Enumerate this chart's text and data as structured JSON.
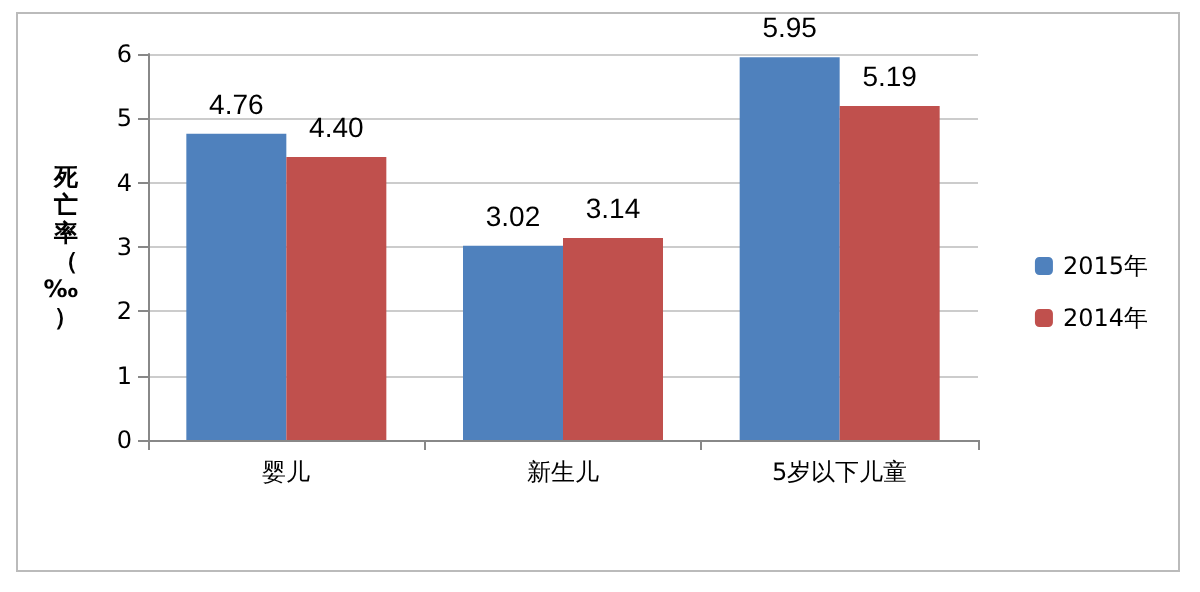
{
  "chart_data": {
    "type": "bar",
    "ylabel": "死亡率（‰）",
    "categories": [
      "婴儿",
      "新生儿",
      "5岁以下儿童"
    ],
    "series": [
      {
        "name": "2015年",
        "color": "#4f81bd",
        "values": [
          4.76,
          3.02,
          5.95
        ],
        "value_labels": [
          "4.76",
          "3.02",
          "5.95"
        ]
      },
      {
        "name": "2014年",
        "color": "#c0504d",
        "values": [
          4.4,
          3.14,
          5.19
        ],
        "value_labels": [
          "4.40",
          "3.14",
          "5.19"
        ]
      }
    ],
    "ylim": [
      0,
      6
    ],
    "yticks": [
      0,
      1,
      2,
      3,
      4,
      5,
      6
    ],
    "grid": "y",
    "legend": "right"
  }
}
